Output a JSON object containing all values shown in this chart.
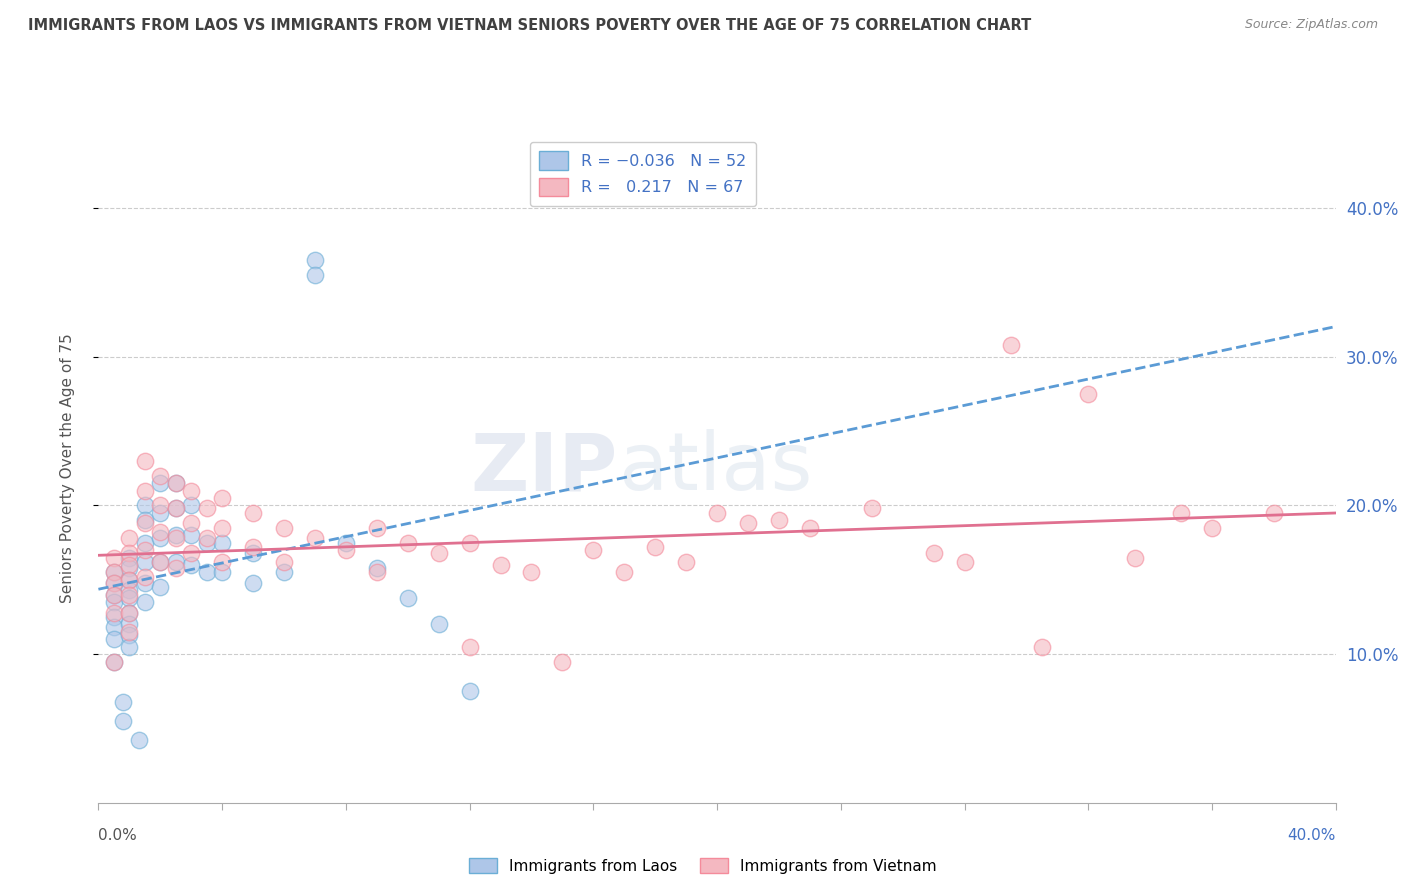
{
  "title": "IMMIGRANTS FROM LAOS VS IMMIGRANTS FROM VIETNAM SENIORS POVERTY OVER THE AGE OF 75 CORRELATION CHART",
  "source": "Source: ZipAtlas.com",
  "ylabel": "Seniors Poverty Over the Age of 75",
  "legend_laos": "Immigrants from Laos",
  "legend_vietnam": "Immigrants from Vietnam",
  "r_laos": -0.036,
  "n_laos": 52,
  "r_vietnam": 0.217,
  "n_vietnam": 67,
  "xlim": [
    0.0,
    0.4
  ],
  "ylim": [
    0.0,
    0.45
  ],
  "yticks": [
    0.1,
    0.2,
    0.3,
    0.4
  ],
  "color_laos": "#aec6e8",
  "color_laos_border": "#6baed6",
  "color_laos_line": "#5b9bd5",
  "color_vietnam": "#f4b8c1",
  "color_vietnam_border": "#f48b9b",
  "color_vietnam_line": "#e07090",
  "laos_x": [
    0.005,
    0.005,
    0.005,
    0.005,
    0.005,
    0.005,
    0.005,
    0.005,
    0.01,
    0.01,
    0.01,
    0.01,
    0.01,
    0.01,
    0.01,
    0.01,
    0.01,
    0.015,
    0.015,
    0.015,
    0.015,
    0.015,
    0.015,
    0.02,
    0.02,
    0.02,
    0.02,
    0.02,
    0.025,
    0.025,
    0.025,
    0.025,
    0.03,
    0.03,
    0.03,
    0.035,
    0.035,
    0.04,
    0.04,
    0.05,
    0.05,
    0.06,
    0.07,
    0.07,
    0.08,
    0.09,
    0.1,
    0.11,
    0.12,
    0.008,
    0.008,
    0.013
  ],
  "laos_y": [
    0.155,
    0.148,
    0.14,
    0.135,
    0.125,
    0.118,
    0.11,
    0.095,
    0.165,
    0.158,
    0.15,
    0.143,
    0.138,
    0.128,
    0.12,
    0.113,
    0.105,
    0.2,
    0.19,
    0.175,
    0.162,
    0.148,
    0.135,
    0.215,
    0.195,
    0.178,
    0.162,
    0.145,
    0.215,
    0.198,
    0.18,
    0.162,
    0.2,
    0.18,
    0.16,
    0.175,
    0.155,
    0.175,
    0.155,
    0.168,
    0.148,
    0.155,
    0.365,
    0.355,
    0.175,
    0.158,
    0.138,
    0.12,
    0.075,
    0.068,
    0.055,
    0.042
  ],
  "vietnam_x": [
    0.005,
    0.005,
    0.005,
    0.005,
    0.005,
    0.005,
    0.01,
    0.01,
    0.01,
    0.01,
    0.01,
    0.01,
    0.01,
    0.015,
    0.015,
    0.015,
    0.015,
    0.015,
    0.02,
    0.02,
    0.02,
    0.02,
    0.025,
    0.025,
    0.025,
    0.025,
    0.03,
    0.03,
    0.03,
    0.035,
    0.035,
    0.04,
    0.04,
    0.04,
    0.05,
    0.05,
    0.06,
    0.06,
    0.07,
    0.08,
    0.09,
    0.09,
    0.1,
    0.11,
    0.12,
    0.12,
    0.13,
    0.14,
    0.15,
    0.16,
    0.17,
    0.18,
    0.19,
    0.2,
    0.21,
    0.22,
    0.23,
    0.25,
    0.27,
    0.28,
    0.295,
    0.305,
    0.32,
    0.335,
    0.35,
    0.36,
    0.38
  ],
  "vietnam_y": [
    0.165,
    0.155,
    0.148,
    0.14,
    0.128,
    0.095,
    0.178,
    0.168,
    0.16,
    0.15,
    0.14,
    0.128,
    0.115,
    0.23,
    0.21,
    0.188,
    0.17,
    0.152,
    0.22,
    0.2,
    0.182,
    0.162,
    0.215,
    0.198,
    0.178,
    0.158,
    0.21,
    0.188,
    0.168,
    0.198,
    0.178,
    0.205,
    0.185,
    0.162,
    0.195,
    0.172,
    0.185,
    0.162,
    0.178,
    0.17,
    0.185,
    0.155,
    0.175,
    0.168,
    0.175,
    0.105,
    0.16,
    0.155,
    0.095,
    0.17,
    0.155,
    0.172,
    0.162,
    0.195,
    0.188,
    0.19,
    0.185,
    0.198,
    0.168,
    0.162,
    0.308,
    0.105,
    0.275,
    0.165,
    0.195,
    0.185,
    0.195
  ],
  "watermark_zip": "ZIP",
  "watermark_atlas": "atlas",
  "background_color": "#ffffff",
  "grid_color": "#cccccc",
  "title_color": "#404040",
  "blue_label_color": "#4472c4"
}
